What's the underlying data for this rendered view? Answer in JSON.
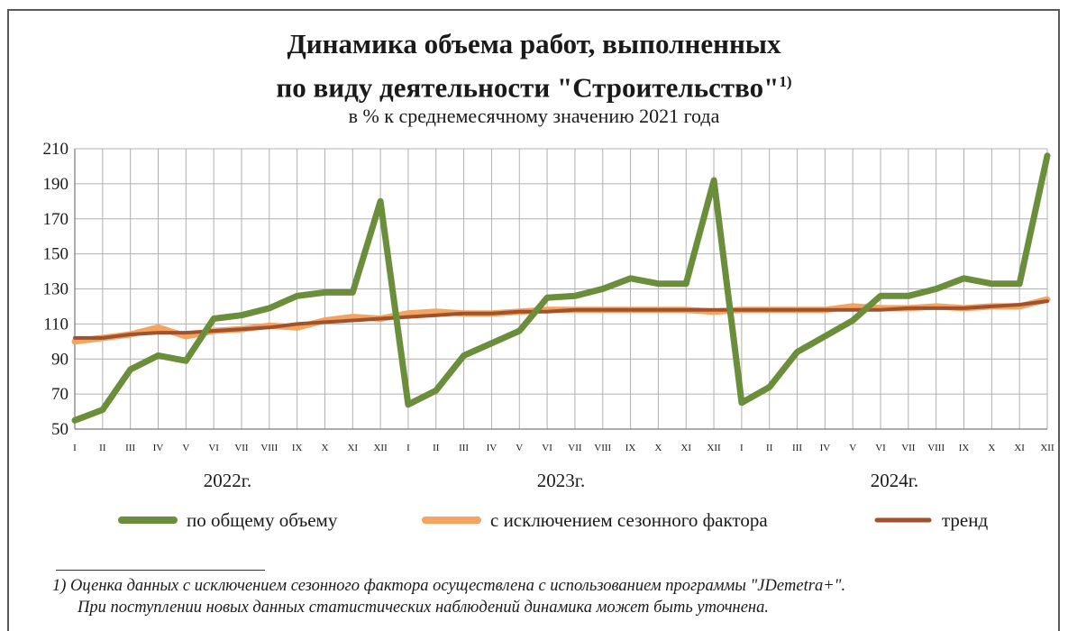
{
  "chart_data": {
    "type": "line",
    "title_line1": "Динамика объема работ, выполненных",
    "title_line2": "по виду деятельности \"Строительство\"",
    "title_sup": "1)",
    "subtitle": "в % к среднемесячному значению 2021  года",
    "ylim": [
      50,
      210
    ],
    "yticks": [
      50,
      70,
      90,
      110,
      130,
      150,
      170,
      190,
      210
    ],
    "x_month_labels": [
      "I",
      "II",
      "III",
      "IV",
      "V",
      "VI",
      "VII",
      "VIII",
      "IX",
      "X",
      "XI",
      "XII",
      "I",
      "II",
      "III",
      "IV",
      "V",
      "VI",
      "VII",
      "VIII",
      "IX",
      "X",
      "XI",
      "XII",
      "I",
      "II",
      "III",
      "IV",
      "V",
      "VI",
      "VII",
      "VIII",
      "IX",
      "X",
      "XI",
      "XII"
    ],
    "year_labels": [
      "2022г.",
      "2023г.",
      "2024г."
    ],
    "grid": true,
    "legend_position": "bottom",
    "series": [
      {
        "name": "по общему объему",
        "color": "#6b8e3a",
        "values": [
          55,
          61,
          84,
          92,
          89,
          113,
          115,
          119,
          126,
          128,
          128,
          180,
          64,
          72,
          92,
          99,
          106,
          125,
          126,
          130,
          136,
          133,
          133,
          192,
          65,
          74,
          94,
          103,
          112,
          126,
          126,
          130,
          136,
          133,
          133,
          206
        ]
      },
      {
        "name": "с исключением сезонного фактора",
        "color": "#f4a460",
        "values": [
          100,
          102,
          104,
          108,
          103,
          106,
          107,
          109,
          108,
          112,
          114,
          113,
          116,
          117,
          116,
          116,
          117,
          118,
          118,
          118,
          118,
          118,
          118,
          117,
          118,
          118,
          118,
          118,
          120,
          119,
          119,
          120,
          119,
          120,
          120,
          124
        ]
      },
      {
        "name": "тренд",
        "color": "#a0522d",
        "values": [
          102,
          102,
          104,
          105,
          105,
          106,
          107,
          108,
          110,
          111,
          112,
          113,
          114,
          115,
          116,
          116,
          117,
          117,
          118,
          118,
          118,
          118,
          118,
          118,
          118,
          118,
          118,
          118,
          118,
          118,
          119,
          119,
          119,
          120,
          121,
          123
        ]
      }
    ]
  },
  "footnote": {
    "line1": "1) Оценка данных с исключением сезонного фактора осуществлена с использованием программы \"JDemetra+\".",
    "line2": "При поступлении новых данных статистических наблюдений динамика может быть уточнена."
  }
}
